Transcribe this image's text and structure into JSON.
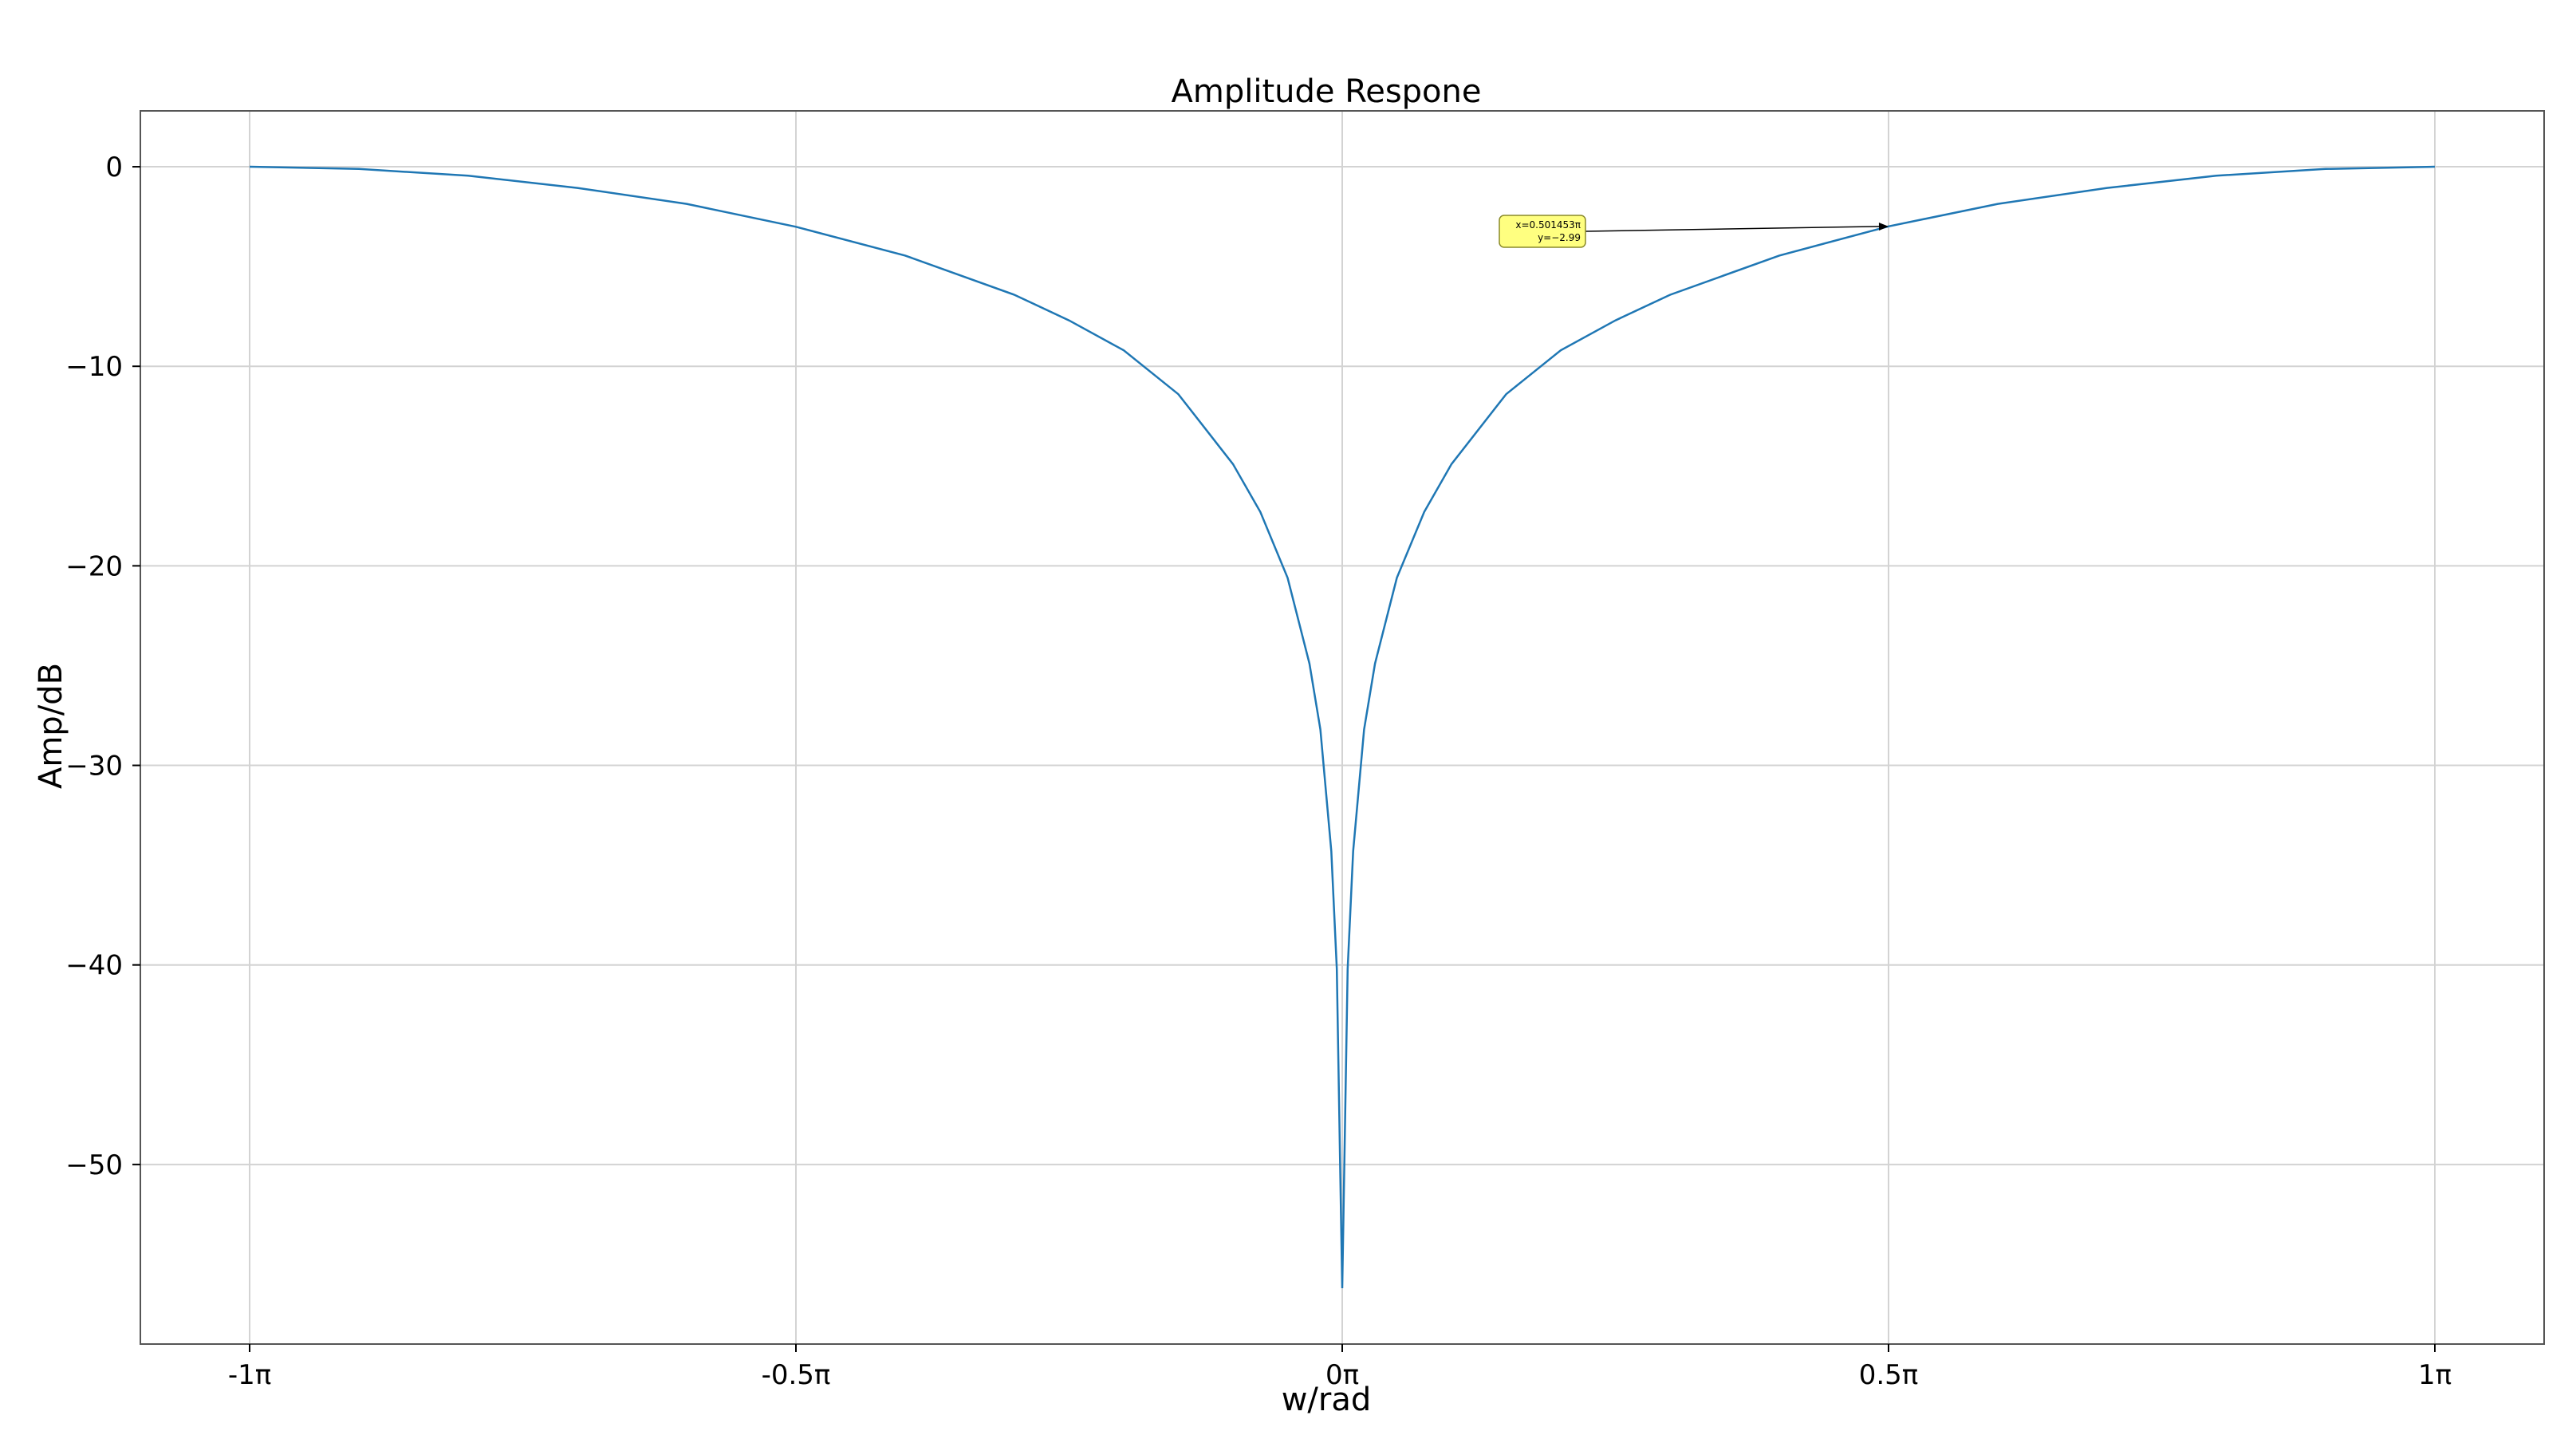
{
  "chart_data": {
    "type": "line",
    "title": "Amplitude Respone",
    "xlabel": "w/rad",
    "ylabel": "Amp/dB",
    "xlim": [
      -1.1,
      1.1
    ],
    "ylim": [
      -59,
      2.8
    ],
    "x_unit": "π",
    "xticks": [
      {
        "value": -1,
        "label": "-1π"
      },
      {
        "value": -0.5,
        "label": "-0.5π"
      },
      {
        "value": 0,
        "label": "0π"
      },
      {
        "value": 0.5,
        "label": "0.5π"
      },
      {
        "value": 1,
        "label": "1π"
      }
    ],
    "yticks": [
      {
        "value": 0,
        "label": "0"
      },
      {
        "value": -10,
        "label": "−10"
      },
      {
        "value": -20,
        "label": "−20"
      },
      {
        "value": -30,
        "label": "−30"
      },
      {
        "value": -40,
        "label": "−40"
      },
      {
        "value": -50,
        "label": "−50"
      }
    ],
    "grid": true,
    "series": [
      {
        "color": "#1f77b4",
        "x": [
          -1,
          -0.9,
          -0.8,
          -0.7,
          -0.6,
          -0.5,
          -0.4,
          -0.3,
          -0.25,
          -0.2,
          -0.15,
          -0.1,
          -0.075,
          -0.05,
          -0.03,
          -0.02,
          -0.01,
          -0.005,
          0,
          0.005,
          0.01,
          0.02,
          0.03,
          0.05,
          0.075,
          0.1,
          0.15,
          0.2,
          0.25,
          0.3,
          0.4,
          0.5,
          0.6,
          0.7,
          0.8,
          0.9,
          1
        ],
        "y": [
          0,
          -0.11,
          -0.45,
          -1.06,
          -1.86,
          -3.01,
          -4.45,
          -6.42,
          -7.7,
          -9.2,
          -11.4,
          -14.9,
          -17.3,
          -20.6,
          -24.9,
          -28.2,
          -34.3,
          -40.2,
          -56.2,
          -40.2,
          -34.3,
          -28.2,
          -24.9,
          -20.6,
          -17.3,
          -14.9,
          -11.4,
          -9.2,
          -7.7,
          -6.42,
          -4.45,
          -2.99,
          -1.86,
          -1.06,
          -0.45,
          -0.11,
          0
        ]
      }
    ],
    "annotation": {
      "x": 0.5,
      "y": -2.99,
      "text_x": "x=0.501453π",
      "text_y": "y=−2.99",
      "box_color": "#ffff80"
    }
  }
}
